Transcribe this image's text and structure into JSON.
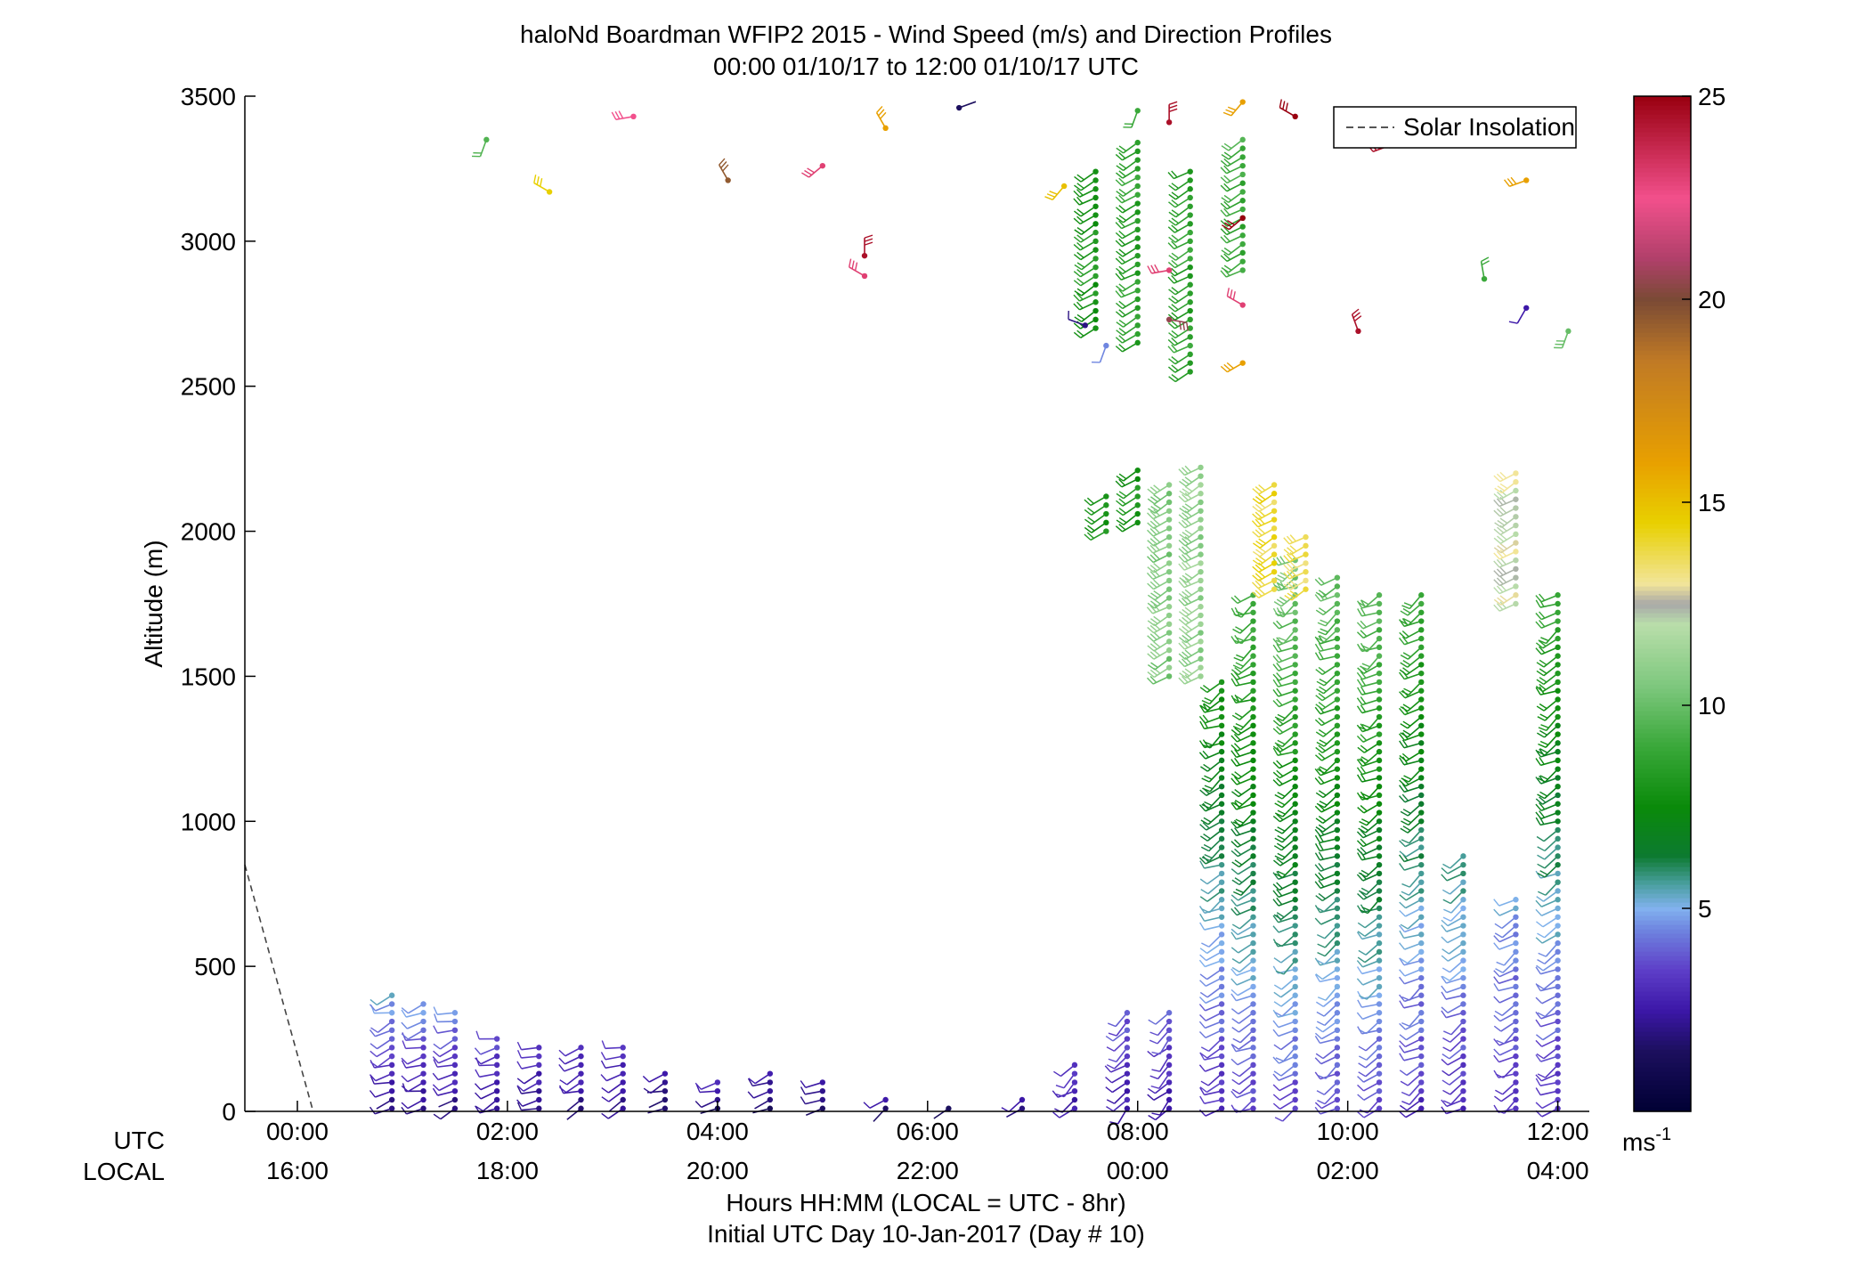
{
  "chart_data": {
    "type": "wind-barb profile",
    "title": "haloNd Boardman WFIP2 2015 - Wind Speed (m/s) and Direction Profiles",
    "subtitle": "00:00 01/10/17 to 12:00 01/10/17  UTC",
    "ylabel": "Altitude (m)",
    "xlabel": "Hours HH:MM  (LOCAL = UTC - 8hr)",
    "xlabel2": "Initial UTC Day 10-Jan-2017 (Day # 10)",
    "row_label_utc": "UTC",
    "row_label_local": "LOCAL",
    "xlim_hours": [
      -0.5,
      12.3
    ],
    "ylim": [
      0,
      3500
    ],
    "y_ticks": [
      "0",
      "500",
      "1000",
      "1500",
      "2000",
      "2500",
      "3000",
      "3500"
    ],
    "x_tick_hours": [
      0,
      2,
      4,
      6,
      8,
      10,
      12
    ],
    "x_ticks_utc": [
      "00:00",
      "02:00",
      "04:00",
      "06:00",
      "08:00",
      "10:00",
      "12:00"
    ],
    "x_ticks_local": [
      "16:00",
      "18:00",
      "20:00",
      "22:00",
      "00:00",
      "02:00",
      "04:00"
    ],
    "legend": {
      "label": "Solar Insolation",
      "placement": "top-right"
    },
    "colorbar": {
      "range": [
        0,
        25
      ],
      "ticks": [
        "5",
        "10",
        "15",
        "20",
        "25"
      ],
      "unit_label": "ms",
      "unit_exponent": "-1"
    },
    "solar_insolation_line": {
      "x_hours": [
        -0.5,
        0.15
      ],
      "y": [
        850,
        0
      ]
    },
    "wind_profiles": [
      {
        "t": 0.9,
        "top": 400,
        "dir": 250,
        "low": 2.0,
        "high": 5.0
      },
      {
        "t": 1.2,
        "top": 380,
        "dir": 250,
        "low": 2.0,
        "high": 5.0
      },
      {
        "t": 1.5,
        "top": 350,
        "dir": 250,
        "low": 2.0,
        "high": 4.5
      },
      {
        "t": 1.9,
        "top": 260,
        "dir": 250,
        "low": 2.0,
        "high": 4.0
      },
      {
        "t": 2.3,
        "top": 240,
        "dir": 250,
        "low": 2.0,
        "high": 3.5
      },
      {
        "t": 2.7,
        "top": 240,
        "dir": 250,
        "low": 2.0,
        "high": 3.5
      },
      {
        "t": 3.1,
        "top": 230,
        "dir": 250,
        "low": 2.0,
        "high": 3.5
      },
      {
        "t": 3.5,
        "top": 150,
        "dir": 250,
        "low": 1.5,
        "high": 3.0
      },
      {
        "t": 4.0,
        "top": 100,
        "dir": 250,
        "low": 1.5,
        "high": 3.0
      },
      {
        "t": 4.5,
        "top": 150,
        "dir": 240,
        "low": 1.5,
        "high": 2.5
      },
      {
        "t": 5.0,
        "top": 120,
        "dir": 240,
        "low": 1.5,
        "high": 2.5
      },
      {
        "t": 5.6,
        "top": 60,
        "dir": 240,
        "low": 1.5,
        "high": 2.5
      },
      {
        "t": 6.2,
        "top": 30,
        "dir": 240,
        "low": 1.0,
        "high": 2.0
      },
      {
        "t": 6.9,
        "top": 60,
        "dir": 230,
        "low": 1.5,
        "high": 3.0
      },
      {
        "t": 7.4,
        "top": 180,
        "dir": 230,
        "low": 2.5,
        "high": 3.5
      },
      {
        "t": 7.9,
        "top": 350,
        "dir": 230,
        "low": 2.5,
        "high": 4.0
      },
      {
        "t": 8.3,
        "top": 350,
        "dir": 230,
        "low": 2.5,
        "high": 4.0
      },
      {
        "t": 8.8,
        "top": 1480,
        "dir": 240,
        "low": 3.0,
        "high": 8.0
      },
      {
        "t": 9.1,
        "top": 1800,
        "dir": 240,
        "low": 3.5,
        "high": 9.5
      },
      {
        "t": 9.5,
        "top": 1900,
        "dir": 240,
        "low": 3.5,
        "high": 10.5
      },
      {
        "t": 9.9,
        "top": 1850,
        "dir": 240,
        "low": 3.5,
        "high": 10.0
      },
      {
        "t": 10.3,
        "top": 1800,
        "dir": 240,
        "low": 3.5,
        "high": 10.0
      },
      {
        "t": 10.7,
        "top": 1800,
        "dir": 240,
        "low": 3.0,
        "high": 9.0
      },
      {
        "t": 11.1,
        "top": 900,
        "dir": 240,
        "low": 3.0,
        "high": 6.0
      },
      {
        "t": 11.6,
        "top": 750,
        "dir": 240,
        "low": 3.0,
        "high": 5.0
      },
      {
        "t": 12.0,
        "top": 1800,
        "dir": 240,
        "low": 3.0,
        "high": 9.0
      }
    ],
    "upper_profiles": [
      {
        "t": 7.6,
        "bottom": 2700,
        "top": 3250,
        "dir": 240,
        "speed": 8.0
      },
      {
        "t": 8.0,
        "bottom": 2650,
        "top": 3350,
        "dir": 240,
        "speed": 8.5
      },
      {
        "t": 8.5,
        "bottom": 2550,
        "top": 3250,
        "dir": 240,
        "speed": 8.5
      },
      {
        "t": 9.0,
        "bottom": 2900,
        "top": 3350,
        "dir": 240,
        "speed": 9.0
      },
      {
        "t": 7.7,
        "bottom": 2000,
        "top": 2120,
        "dir": 240,
        "speed": 8.0
      },
      {
        "t": 8.0,
        "bottom": 2030,
        "top": 2230,
        "dir": 240,
        "speed": 8.0
      },
      {
        "t": 8.3,
        "bottom": 1500,
        "top": 2180,
        "dir": 240,
        "speed": 10.5
      },
      {
        "t": 8.6,
        "bottom": 1500,
        "top": 2240,
        "dir": 240,
        "speed": 11.0
      },
      {
        "t": 9.3,
        "bottom": 1800,
        "top": 2160,
        "dir": 240,
        "speed": 14.0
      },
      {
        "t": 9.6,
        "bottom": 1800,
        "top": 2000,
        "dir": 240,
        "speed": 13.5
      },
      {
        "t": 11.6,
        "bottom": 1750,
        "top": 2220,
        "dir": 240,
        "speed": 12.5
      }
    ],
    "scatter_barbs": [
      {
        "t": 1.8,
        "alt": 3350,
        "dir": 200,
        "speed": 9.5
      },
      {
        "t": 2.4,
        "alt": 3170,
        "dir": 300,
        "speed": 14.5
      },
      {
        "t": 3.2,
        "alt": 3430,
        "dir": 260,
        "speed": 22.5
      },
      {
        "t": 4.1,
        "alt": 3210,
        "dir": 330,
        "speed": 19.5
      },
      {
        "t": 5.0,
        "alt": 3260,
        "dir": 230,
        "speed": 23.0
      },
      {
        "t": 5.4,
        "alt": 2880,
        "dir": 300,
        "speed": 23.0
      },
      {
        "t": 5.4,
        "alt": 2950,
        "dir": 360,
        "speed": 24.5
      },
      {
        "t": 5.6,
        "alt": 3390,
        "dir": 330,
        "speed": 16.0
      },
      {
        "t": 6.3,
        "alt": 3460,
        "dir": 70,
        "speed": 1.5
      },
      {
        "t": 7.3,
        "alt": 3190,
        "dir": 220,
        "speed": 15.0
      },
      {
        "t": 7.5,
        "alt": 2710,
        "dir": 290,
        "speed": 2.0
      },
      {
        "t": 7.7,
        "alt": 2640,
        "dir": 200,
        "speed": 4.5
      },
      {
        "t": 8.0,
        "alt": 3450,
        "dir": 200,
        "speed": 9.0
      },
      {
        "t": 8.3,
        "alt": 3410,
        "dir": 360,
        "speed": 24.5
      },
      {
        "t": 8.3,
        "alt": 2900,
        "dir": 260,
        "speed": 23.0
      },
      {
        "t": 8.3,
        "alt": 2730,
        "dir": 100,
        "speed": 20.5
      },
      {
        "t": 9.0,
        "alt": 3480,
        "dir": 220,
        "speed": 16.0
      },
      {
        "t": 9.0,
        "alt": 3080,
        "dir": 230,
        "speed": 25.0
      },
      {
        "t": 9.0,
        "alt": 2780,
        "dir": 300,
        "speed": 23.0
      },
      {
        "t": 9.0,
        "alt": 2580,
        "dir": 240,
        "speed": 16.0
      },
      {
        "t": 9.5,
        "alt": 3430,
        "dir": 300,
        "speed": 25.0
      },
      {
        "t": 10.1,
        "alt": 2690,
        "dir": 340,
        "speed": 24.5
      },
      {
        "t": 10.4,
        "alt": 3330,
        "dir": 250,
        "speed": 24.5
      },
      {
        "t": 11.3,
        "alt": 2870,
        "dir": 350,
        "speed": 9.0
      },
      {
        "t": 11.7,
        "alt": 3210,
        "dir": 250,
        "speed": 16.0
      },
      {
        "t": 11.7,
        "alt": 2770,
        "dir": 210,
        "speed": 2.5
      },
      {
        "t": 12.1,
        "alt": 2690,
        "dir": 200,
        "speed": 10.0
      }
    ]
  }
}
